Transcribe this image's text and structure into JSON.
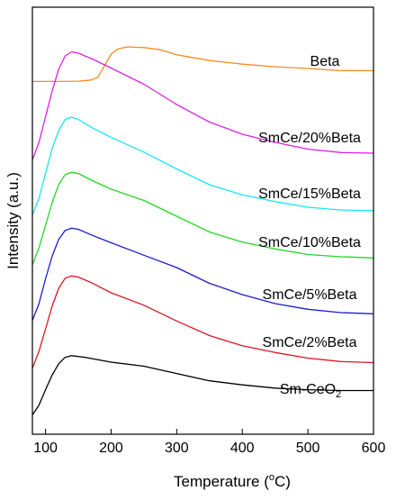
{
  "chart_data": {
    "type": "line",
    "xlabel_main": "Temperature (",
    "xlabel_sup": "o",
    "xlabel_end": "C)",
    "ylabel": "Intensity (a.u.)",
    "xlim": [
      80,
      600
    ],
    "xticks": [
      100,
      200,
      300,
      400,
      500,
      600
    ],
    "xtick_labels": [
      "100",
      "200",
      "300",
      "400",
      "500",
      "600"
    ],
    "y_ticks_shown": false,
    "grid": false,
    "series": [
      {
        "name": "Beta",
        "color": "#f28c1e",
        "points": [
          [
            80,
            0.06
          ],
          [
            120,
            0.06
          ],
          [
            150,
            0.062
          ],
          [
            170,
            0.07
          ],
          [
            180,
            0.09
          ],
          [
            190,
            0.17
          ],
          [
            200,
            0.25
          ],
          [
            210,
            0.285
          ],
          [
            225,
            0.3
          ],
          [
            250,
            0.295
          ],
          [
            275,
            0.28
          ],
          [
            300,
            0.245
          ],
          [
            350,
            0.205
          ],
          [
            400,
            0.18
          ],
          [
            450,
            0.162
          ],
          [
            500,
            0.15
          ],
          [
            550,
            0.135
          ],
          [
            600,
            0.135
          ]
        ]
      },
      {
        "name": "SmCe/20%Beta",
        "color": "#e020e0",
        "points": [
          [
            80,
            0.05
          ],
          [
            90,
            0.18
          ],
          [
            100,
            0.37
          ],
          [
            110,
            0.56
          ],
          [
            120,
            0.72
          ],
          [
            130,
            0.82
          ],
          [
            140,
            0.85
          ],
          [
            150,
            0.84
          ],
          [
            170,
            0.8
          ],
          [
            200,
            0.73
          ],
          [
            250,
            0.61
          ],
          [
            300,
            0.46
          ],
          [
            350,
            0.33
          ],
          [
            400,
            0.24
          ],
          [
            450,
            0.18
          ],
          [
            500,
            0.13
          ],
          [
            550,
            0.105
          ],
          [
            600,
            0.1
          ]
        ]
      },
      {
        "name": "SmCe/15%Beta",
        "color": "#1ae6ef",
        "points": [
          [
            80,
            0.05
          ],
          [
            90,
            0.2
          ],
          [
            100,
            0.42
          ],
          [
            110,
            0.64
          ],
          [
            120,
            0.8
          ],
          [
            130,
            0.9
          ],
          [
            140,
            0.92
          ],
          [
            150,
            0.9
          ],
          [
            170,
            0.83
          ],
          [
            200,
            0.74
          ],
          [
            250,
            0.61
          ],
          [
            300,
            0.46
          ],
          [
            350,
            0.32
          ],
          [
            400,
            0.23
          ],
          [
            450,
            0.17
          ],
          [
            500,
            0.12
          ],
          [
            550,
            0.095
          ],
          [
            600,
            0.09
          ]
        ]
      },
      {
        "name": "SmCe/10%Beta",
        "color": "#22d822",
        "points": [
          [
            80,
            0.05
          ],
          [
            90,
            0.2
          ],
          [
            100,
            0.4
          ],
          [
            110,
            0.6
          ],
          [
            120,
            0.76
          ],
          [
            130,
            0.85
          ],
          [
            140,
            0.87
          ],
          [
            150,
            0.86
          ],
          [
            170,
            0.8
          ],
          [
            200,
            0.72
          ],
          [
            250,
            0.62
          ],
          [
            300,
            0.48
          ],
          [
            350,
            0.34
          ],
          [
            400,
            0.25
          ],
          [
            450,
            0.19
          ],
          [
            500,
            0.14
          ],
          [
            550,
            0.12
          ],
          [
            600,
            0.11
          ]
        ]
      },
      {
        "name": "SmCe/5%Beta",
        "color": "#1a1ad6",
        "points": [
          [
            80,
            0.05
          ],
          [
            90,
            0.2
          ],
          [
            100,
            0.42
          ],
          [
            110,
            0.62
          ],
          [
            120,
            0.77
          ],
          [
            130,
            0.85
          ],
          [
            140,
            0.87
          ],
          [
            150,
            0.86
          ],
          [
            170,
            0.81
          ],
          [
            200,
            0.74
          ],
          [
            250,
            0.63
          ],
          [
            300,
            0.52
          ],
          [
            350,
            0.38
          ],
          [
            400,
            0.28
          ],
          [
            450,
            0.2
          ],
          [
            500,
            0.15
          ],
          [
            550,
            0.12
          ],
          [
            600,
            0.11
          ]
        ]
      },
      {
        "name": "SmCe/2%Beta",
        "color": "#e0141e",
        "points": [
          [
            80,
            0.05
          ],
          [
            90,
            0.2
          ],
          [
            100,
            0.4
          ],
          [
            110,
            0.6
          ],
          [
            120,
            0.76
          ],
          [
            130,
            0.85
          ],
          [
            140,
            0.87
          ],
          [
            150,
            0.86
          ],
          [
            170,
            0.81
          ],
          [
            200,
            0.72
          ],
          [
            250,
            0.61
          ],
          [
            300,
            0.47
          ],
          [
            350,
            0.34
          ],
          [
            400,
            0.25
          ],
          [
            450,
            0.19
          ],
          [
            500,
            0.14
          ],
          [
            550,
            0.11
          ],
          [
            600,
            0.1
          ]
        ]
      },
      {
        "name": "Sm-CeO",
        "name_sub": "2",
        "color": "#000000",
        "points": [
          [
            80,
            0.05
          ],
          [
            90,
            0.17
          ],
          [
            100,
            0.36
          ],
          [
            110,
            0.54
          ],
          [
            120,
            0.68
          ],
          [
            130,
            0.76
          ],
          [
            140,
            0.78
          ],
          [
            160,
            0.76
          ],
          [
            200,
            0.7
          ],
          [
            250,
            0.65
          ],
          [
            300,
            0.56
          ],
          [
            350,
            0.47
          ],
          [
            400,
            0.42
          ],
          [
            450,
            0.38
          ],
          [
            500,
            0.36
          ],
          [
            550,
            0.35
          ],
          [
            600,
            0.35
          ]
        ]
      }
    ]
  }
}
